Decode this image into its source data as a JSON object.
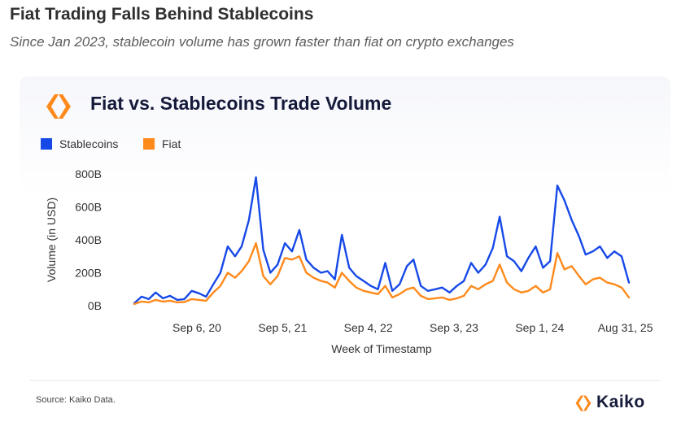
{
  "header": {
    "headline": "Fiat Trading Falls Behind Stablecoins",
    "subhead": "Since Jan 2023, stablecoin volume has grown faster than fiat on crypto exchanges"
  },
  "footer": {
    "source": "Source: Kaiko Data.",
    "brand": "Kaiko"
  },
  "colors": {
    "stablecoins": "#1749e8",
    "fiat": "#ff8a1c",
    "logo_orange": "#ff8a1c"
  },
  "icons": {
    "logo": "kaiko-logo-icon"
  },
  "chart_data": {
    "type": "line",
    "title": "Fiat vs. Stablecoins Trade Volume",
    "xlabel": "Week of Timestamp",
    "ylabel": "Volume (in USD)",
    "x_start": "2019-12",
    "x_end": "2025-09",
    "ylim": [
      0,
      800
    ],
    "y_unit": "B",
    "yticks": [
      "0B",
      "200B",
      "400B",
      "600B",
      "800B"
    ],
    "xticks": [
      {
        "label": "Sep 6, 20",
        "date": "2020-09-06"
      },
      {
        "label": "Sep 5, 21",
        "date": "2021-09-05"
      },
      {
        "label": "Sep 4, 22",
        "date": "2022-09-04"
      },
      {
        "label": "Sep 3, 23",
        "date": "2023-09-03"
      },
      {
        "label": "Sep 1, 24",
        "date": "2024-09-01"
      },
      {
        "label": "Aug 31, 25",
        "date": "2025-08-31"
      }
    ],
    "legend_position": "top-left",
    "grid": false,
    "series": [
      {
        "name": "Stablecoins",
        "color": "#1749e8",
        "points": [
          [
            "2019-12",
            15
          ],
          [
            "2020-01",
            55
          ],
          [
            "2020-02",
            40
          ],
          [
            "2020-03",
            80
          ],
          [
            "2020-04",
            45
          ],
          [
            "2020-05",
            60
          ],
          [
            "2020-06",
            35
          ],
          [
            "2020-07",
            40
          ],
          [
            "2020-08",
            90
          ],
          [
            "2020-09",
            75
          ],
          [
            "2020-10",
            55
          ],
          [
            "2020-11",
            130
          ],
          [
            "2020-12",
            200
          ],
          [
            "2021-01",
            360
          ],
          [
            "2021-02",
            300
          ],
          [
            "2021-03",
            360
          ],
          [
            "2021-04",
            520
          ],
          [
            "2021-05",
            780
          ],
          [
            "2021-06",
            340
          ],
          [
            "2021-07",
            200
          ],
          [
            "2021-08",
            250
          ],
          [
            "2021-09",
            380
          ],
          [
            "2021-10",
            330
          ],
          [
            "2021-11",
            460
          ],
          [
            "2021-12",
            280
          ],
          [
            "2022-01",
            230
          ],
          [
            "2022-02",
            200
          ],
          [
            "2022-03",
            210
          ],
          [
            "2022-04",
            160
          ],
          [
            "2022-05",
            430
          ],
          [
            "2022-06",
            230
          ],
          [
            "2022-07",
            180
          ],
          [
            "2022-08",
            150
          ],
          [
            "2022-09",
            120
          ],
          [
            "2022-10",
            100
          ],
          [
            "2022-11",
            260
          ],
          [
            "2022-12",
            90
          ],
          [
            "2023-01",
            130
          ],
          [
            "2023-02",
            240
          ],
          [
            "2023-03",
            280
          ],
          [
            "2023-04",
            120
          ],
          [
            "2023-05",
            90
          ],
          [
            "2023-06",
            100
          ],
          [
            "2023-07",
            110
          ],
          [
            "2023-08",
            80
          ],
          [
            "2023-09",
            120
          ],
          [
            "2023-10",
            150
          ],
          [
            "2023-11",
            260
          ],
          [
            "2023-12",
            200
          ],
          [
            "2024-01",
            250
          ],
          [
            "2024-02",
            350
          ],
          [
            "2024-03",
            540
          ],
          [
            "2024-04",
            300
          ],
          [
            "2024-05",
            270
          ],
          [
            "2024-06",
            210
          ],
          [
            "2024-07",
            290
          ],
          [
            "2024-08",
            360
          ],
          [
            "2024-09",
            230
          ],
          [
            "2024-10",
            270
          ],
          [
            "2024-11",
            730
          ],
          [
            "2024-12",
            640
          ],
          [
            "2025-01",
            520
          ],
          [
            "2025-02",
            420
          ],
          [
            "2025-03",
            310
          ],
          [
            "2025-04",
            330
          ],
          [
            "2025-05",
            360
          ],
          [
            "2025-06",
            290
          ],
          [
            "2025-07",
            330
          ],
          [
            "2025-08",
            300
          ],
          [
            "2025-09",
            140
          ]
        ]
      },
      {
        "name": "Fiat",
        "color": "#ff8a1c",
        "points": [
          [
            "2019-12",
            10
          ],
          [
            "2020-01",
            25
          ],
          [
            "2020-02",
            20
          ],
          [
            "2020-03",
            35
          ],
          [
            "2020-04",
            25
          ],
          [
            "2020-05",
            30
          ],
          [
            "2020-06",
            20
          ],
          [
            "2020-07",
            22
          ],
          [
            "2020-08",
            40
          ],
          [
            "2020-09",
            35
          ],
          [
            "2020-10",
            30
          ],
          [
            "2020-11",
            80
          ],
          [
            "2020-12",
            120
          ],
          [
            "2021-01",
            200
          ],
          [
            "2021-02",
            170
          ],
          [
            "2021-03",
            210
          ],
          [
            "2021-04",
            270
          ],
          [
            "2021-05",
            380
          ],
          [
            "2021-06",
            180
          ],
          [
            "2021-07",
            130
          ],
          [
            "2021-08",
            180
          ],
          [
            "2021-09",
            290
          ],
          [
            "2021-10",
            280
          ],
          [
            "2021-11",
            300
          ],
          [
            "2021-12",
            200
          ],
          [
            "2022-01",
            170
          ],
          [
            "2022-02",
            150
          ],
          [
            "2022-03",
            140
          ],
          [
            "2022-04",
            110
          ],
          [
            "2022-05",
            200
          ],
          [
            "2022-06",
            150
          ],
          [
            "2022-07",
            110
          ],
          [
            "2022-08",
            90
          ],
          [
            "2022-09",
            80
          ],
          [
            "2022-10",
            70
          ],
          [
            "2022-11",
            120
          ],
          [
            "2022-12",
            50
          ],
          [
            "2023-01",
            70
          ],
          [
            "2023-02",
            100
          ],
          [
            "2023-03",
            110
          ],
          [
            "2023-04",
            60
          ],
          [
            "2023-05",
            40
          ],
          [
            "2023-06",
            45
          ],
          [
            "2023-07",
            50
          ],
          [
            "2023-08",
            35
          ],
          [
            "2023-09",
            45
          ],
          [
            "2023-10",
            60
          ],
          [
            "2023-11",
            120
          ],
          [
            "2023-12",
            100
          ],
          [
            "2024-01",
            130
          ],
          [
            "2024-02",
            150
          ],
          [
            "2024-03",
            250
          ],
          [
            "2024-04",
            140
          ],
          [
            "2024-05",
            100
          ],
          [
            "2024-06",
            80
          ],
          [
            "2024-07",
            90
          ],
          [
            "2024-08",
            120
          ],
          [
            "2024-09",
            80
          ],
          [
            "2024-10",
            100
          ],
          [
            "2024-11",
            320
          ],
          [
            "2024-12",
            220
          ],
          [
            "2025-01",
            240
          ],
          [
            "2025-02",
            180
          ],
          [
            "2025-03",
            130
          ],
          [
            "2025-04",
            160
          ],
          [
            "2025-05",
            170
          ],
          [
            "2025-06",
            140
          ],
          [
            "2025-07",
            130
          ],
          [
            "2025-08",
            110
          ],
          [
            "2025-09",
            50
          ]
        ]
      }
    ]
  }
}
